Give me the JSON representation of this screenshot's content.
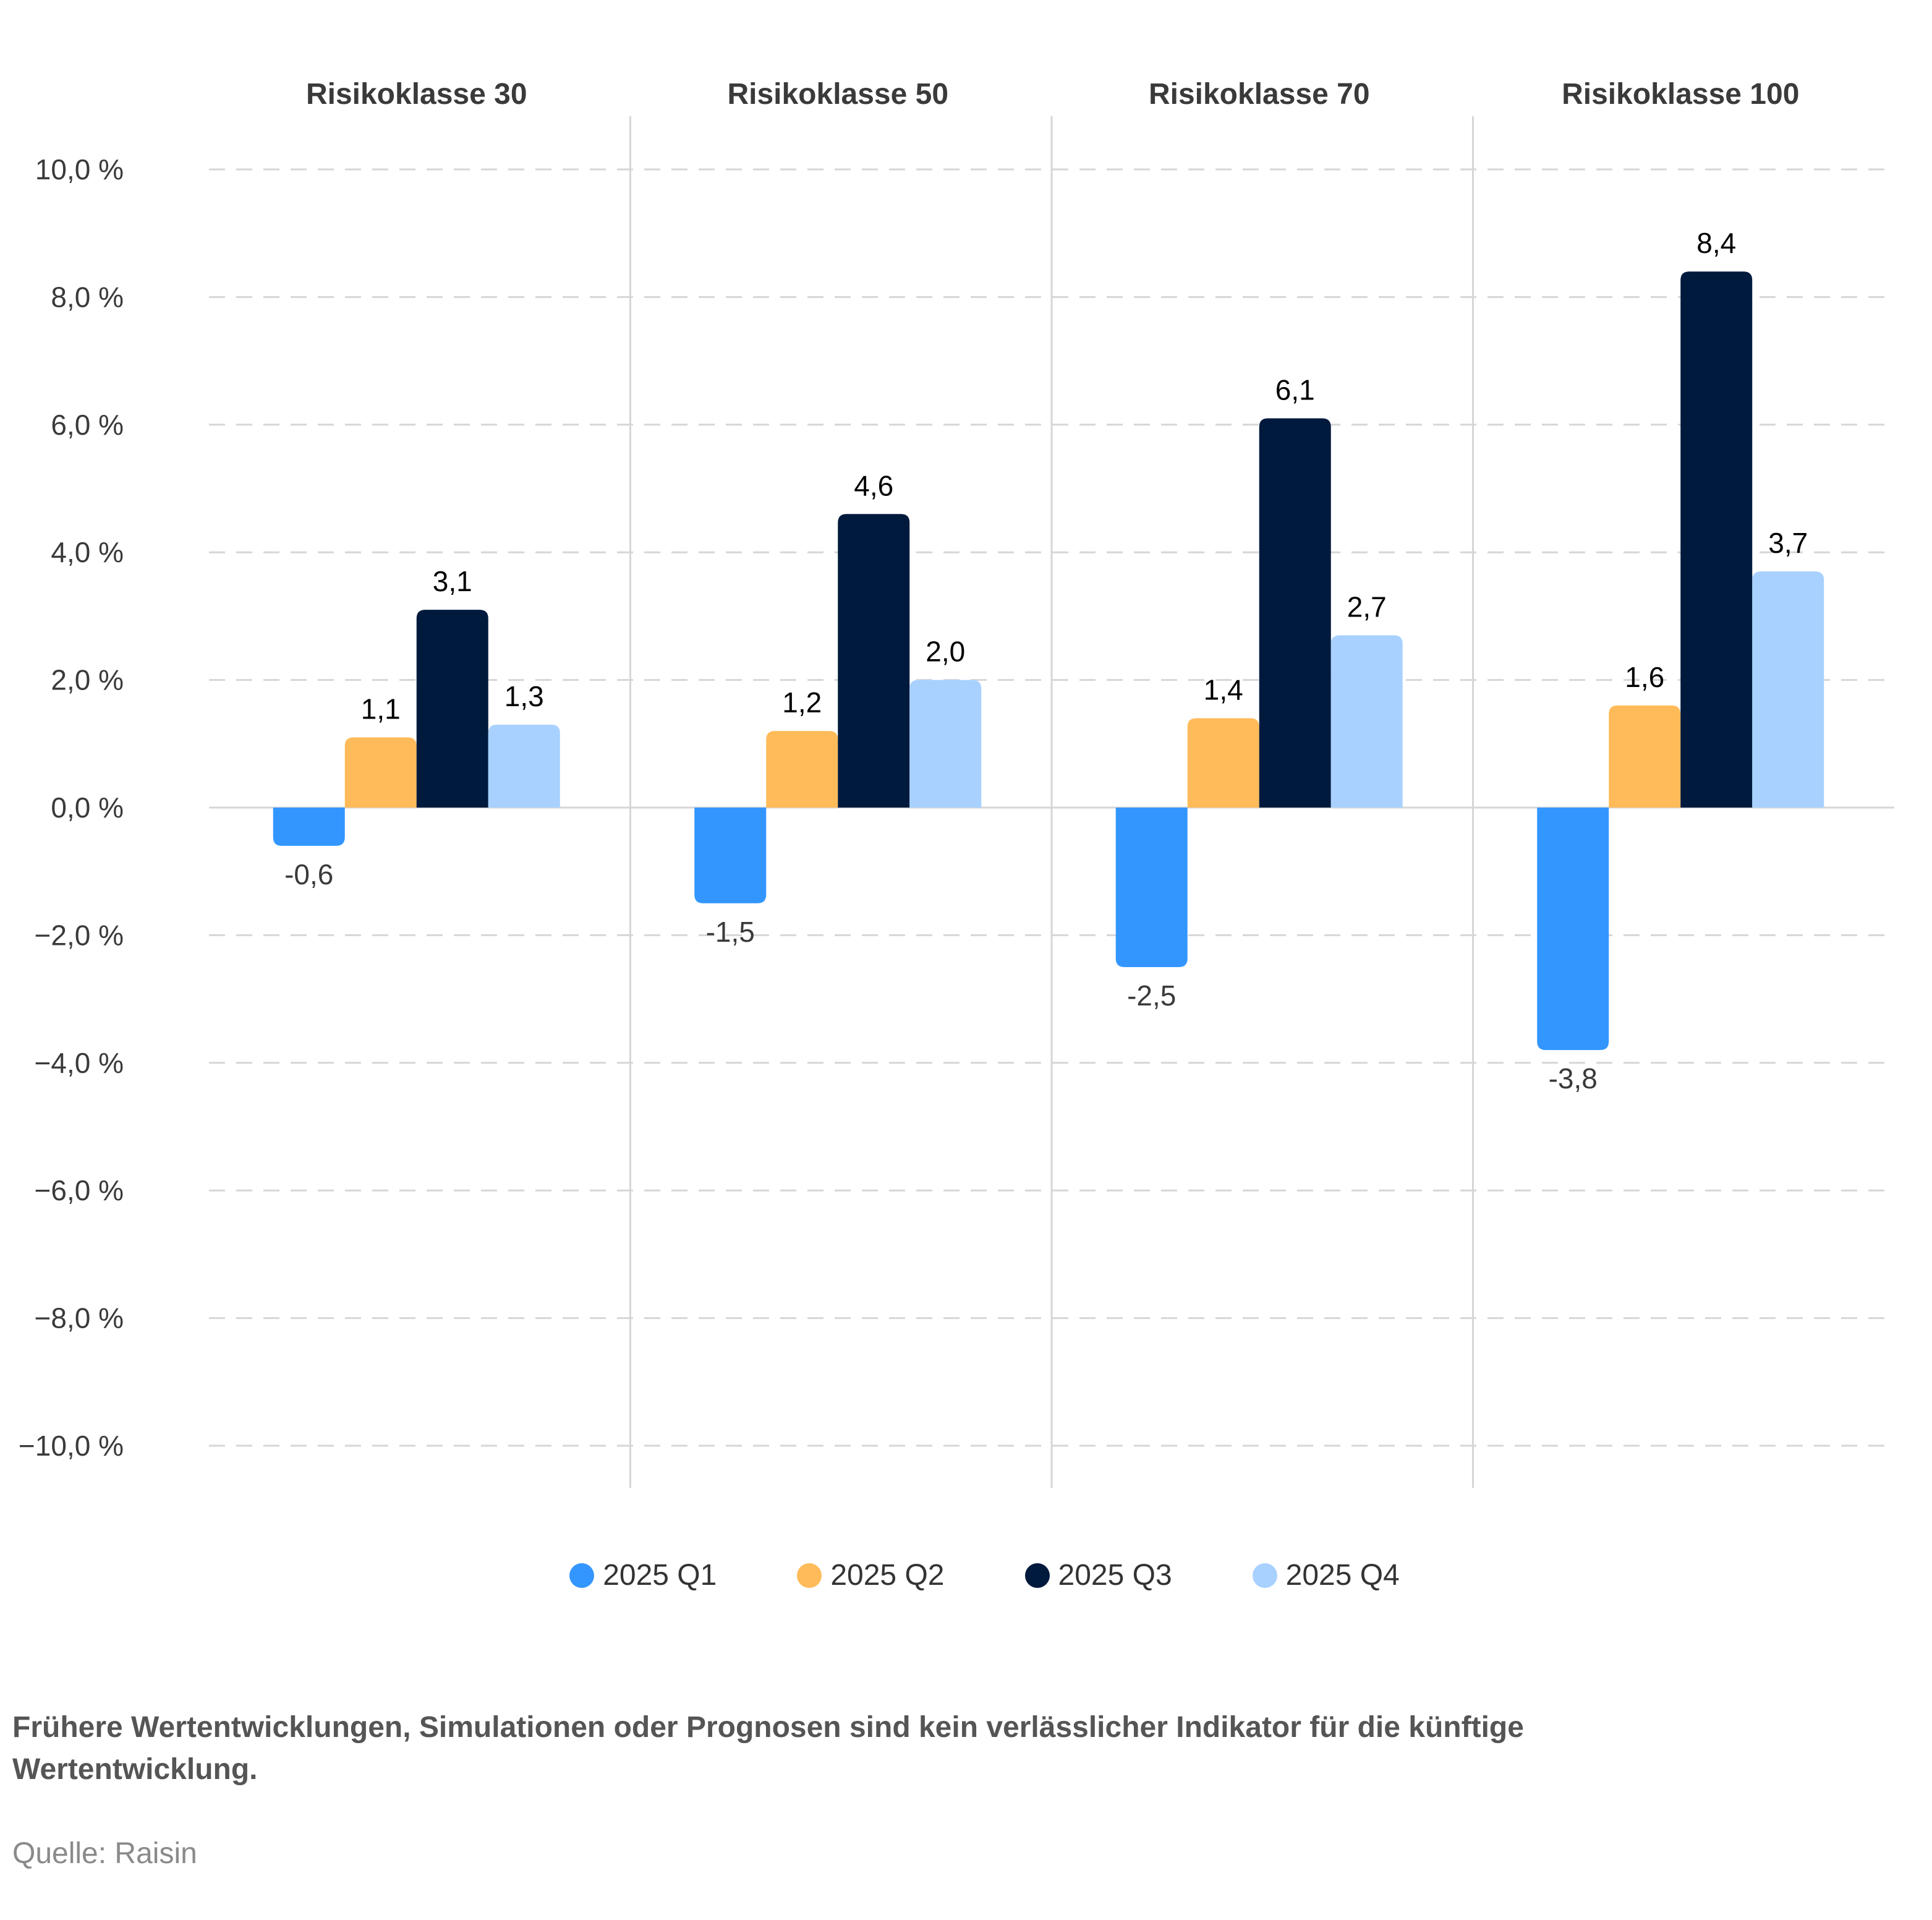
{
  "chart_data": {
    "type": "bar",
    "categories": [
      "Risikoklasse 30",
      "Risikoklasse 50",
      "Risikoklasse 70",
      "Risikoklasse 100"
    ],
    "series": [
      {
        "name": "2025 Q1",
        "color": "#3396ff",
        "values": [
          -0.6,
          -1.5,
          -2.5,
          -3.8
        ],
        "labels": [
          "-0,6",
          "-1,5",
          "-2,5",
          "-3,8"
        ]
      },
      {
        "name": "2025 Q2",
        "color": "#ffbb5a",
        "values": [
          1.1,
          1.2,
          1.4,
          1.6
        ],
        "labels": [
          "1,1",
          "1,2",
          "1,4",
          "1,6"
        ]
      },
      {
        "name": "2025 Q3",
        "color": "#001a3d",
        "values": [
          3.1,
          4.6,
          6.1,
          8.4
        ],
        "labels": [
          "3,1",
          "4,6",
          "6,1",
          "8,4"
        ]
      },
      {
        "name": "2025 Q4",
        "color": "#a8d1ff",
        "values": [
          1.3,
          2.0,
          2.7,
          3.7
        ],
        "labels": [
          "1,3",
          "2,0",
          "2,7",
          "3,7"
        ]
      }
    ],
    "ylim": [
      -10,
      10
    ],
    "yticks": [
      10,
      8,
      6,
      4,
      2,
      0,
      -2,
      -4,
      -6,
      -8,
      -10
    ],
    "ytick_labels": [
      "10,0 %",
      "8,0 %",
      "6,0 %",
      "4,0 %",
      "2,0 %",
      "0,0 %",
      "−2,0 %",
      "−4,0 %",
      "−6,0 %",
      "−8,0 %",
      "−10,0 %"
    ],
    "grid": true,
    "legend": "bottom"
  },
  "footnote": "Frühere Wertentwicklungen, Simulationen oder Prognosen sind kein verlässlicher Indikator für die künftige Wertentwicklung.",
  "source": "Quelle: Raisin"
}
